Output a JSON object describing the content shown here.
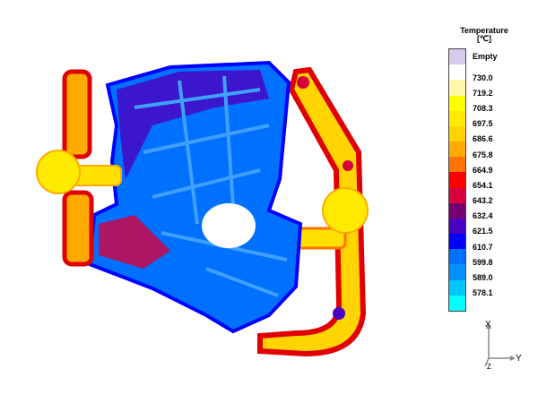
{
  "legend": {
    "title": "Temperature",
    "unit": "[℃]",
    "labels": [
      "Empty",
      "730.0",
      "719.2",
      "708.3",
      "697.5",
      "686.6",
      "675.8",
      "664.9",
      "654.1",
      "643.2",
      "632.4",
      "621.5",
      "610.7",
      "599.8",
      "589.0",
      "578.1"
    ],
    "colors": [
      "#d4cce8",
      "#ffffff",
      "#fff8a8",
      "#ffff00",
      "#ffea00",
      "#ffd400",
      "#ffaa00",
      "#ff7400",
      "#ff0000",
      "#d8003c",
      "#760070",
      "#4a00c0",
      "#0000ff",
      "#0070ff",
      "#0090ff",
      "#00c8ff",
      "#00ffff"
    ]
  },
  "axes": {
    "x": "X",
    "y": "Y",
    "z": "Z"
  }
}
